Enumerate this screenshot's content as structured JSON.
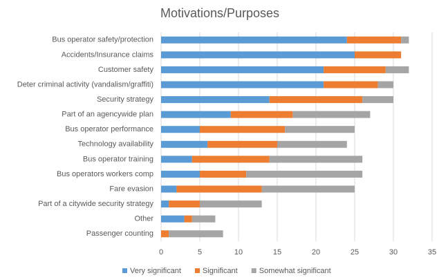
{
  "chart_data": {
    "type": "stacked_bar_horizontal",
    "title": "Motivations/Purposes",
    "categories": [
      "Bus operator safety/protection",
      "Accidents/Insurance claims",
      "Customer safety",
      "Deter criminal activity (vandalism/graffiti)",
      "Security strategy",
      "Part of an agencywide plan",
      "Bus operator performance",
      "Technology availability",
      "Bus operator training",
      "Bus operators workers comp",
      "Fare evasion",
      "Part of a citywide security strategy",
      "Other",
      "Passenger counting"
    ],
    "series": [
      {
        "name": "Very significant",
        "color": "#5b9bd5",
        "values": [
          24,
          25,
          21,
          21,
          14,
          9,
          5,
          6,
          4,
          5,
          2,
          1,
          3,
          0
        ]
      },
      {
        "name": "Significant",
        "color": "#ed7d31",
        "values": [
          7,
          6,
          8,
          7,
          12,
          8,
          11,
          9,
          10,
          6,
          11,
          4,
          1,
          1
        ]
      },
      {
        "name": "Somewhat significant",
        "color": "#a5a5a5",
        "values": [
          1,
          0,
          3,
          2,
          4,
          10,
          9,
          9,
          12,
          15,
          12,
          8,
          3,
          7
        ]
      }
    ],
    "xlim": [
      0,
      35
    ],
    "xticks": [
      0,
      5,
      10,
      15,
      20,
      25,
      30,
      35
    ],
    "grid": true,
    "legend": "bottom"
  }
}
